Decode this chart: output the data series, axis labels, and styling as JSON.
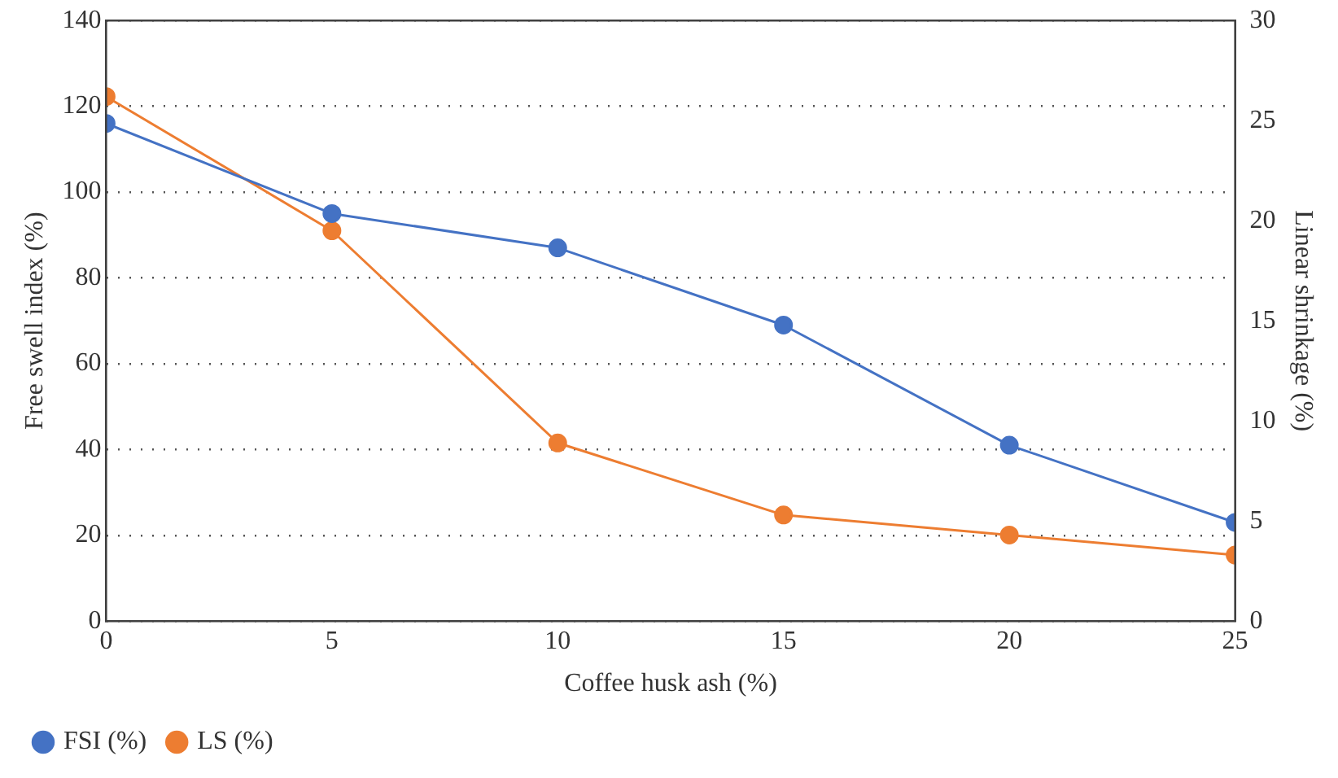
{
  "chart_data": {
    "type": "line",
    "xlabel": "Coffee husk ash (%)",
    "ylabel": "Free swell index (%)",
    "y2label": "Linear shrinkage (%)",
    "x": [
      0,
      5,
      10,
      15,
      20,
      25
    ],
    "series": [
      {
        "name": "FSI (%)",
        "color": "#4472c4",
        "values": [
          116,
          95,
          87,
          69,
          41,
          23
        ]
      },
      {
        "name": "LS (%)",
        "color": "#ed7d31",
        "axis": "y2",
        "values": [
          26.2,
          19.5,
          8.9,
          5.3,
          4.3,
          3.3
        ]
      }
    ],
    "xlim": [
      0,
      25
    ],
    "xticks": [
      0,
      5,
      10,
      15,
      20,
      25
    ],
    "ylim": [
      0,
      140
    ],
    "yticks": [
      0,
      20,
      40,
      60,
      80,
      100,
      120,
      140
    ],
    "y2lim": [
      0,
      30
    ],
    "y2ticks": [
      0,
      5,
      10,
      15,
      20,
      25,
      30
    ],
    "grid": "y",
    "legend": "bottom left",
    "marker": "circle",
    "line_style": "solid"
  }
}
